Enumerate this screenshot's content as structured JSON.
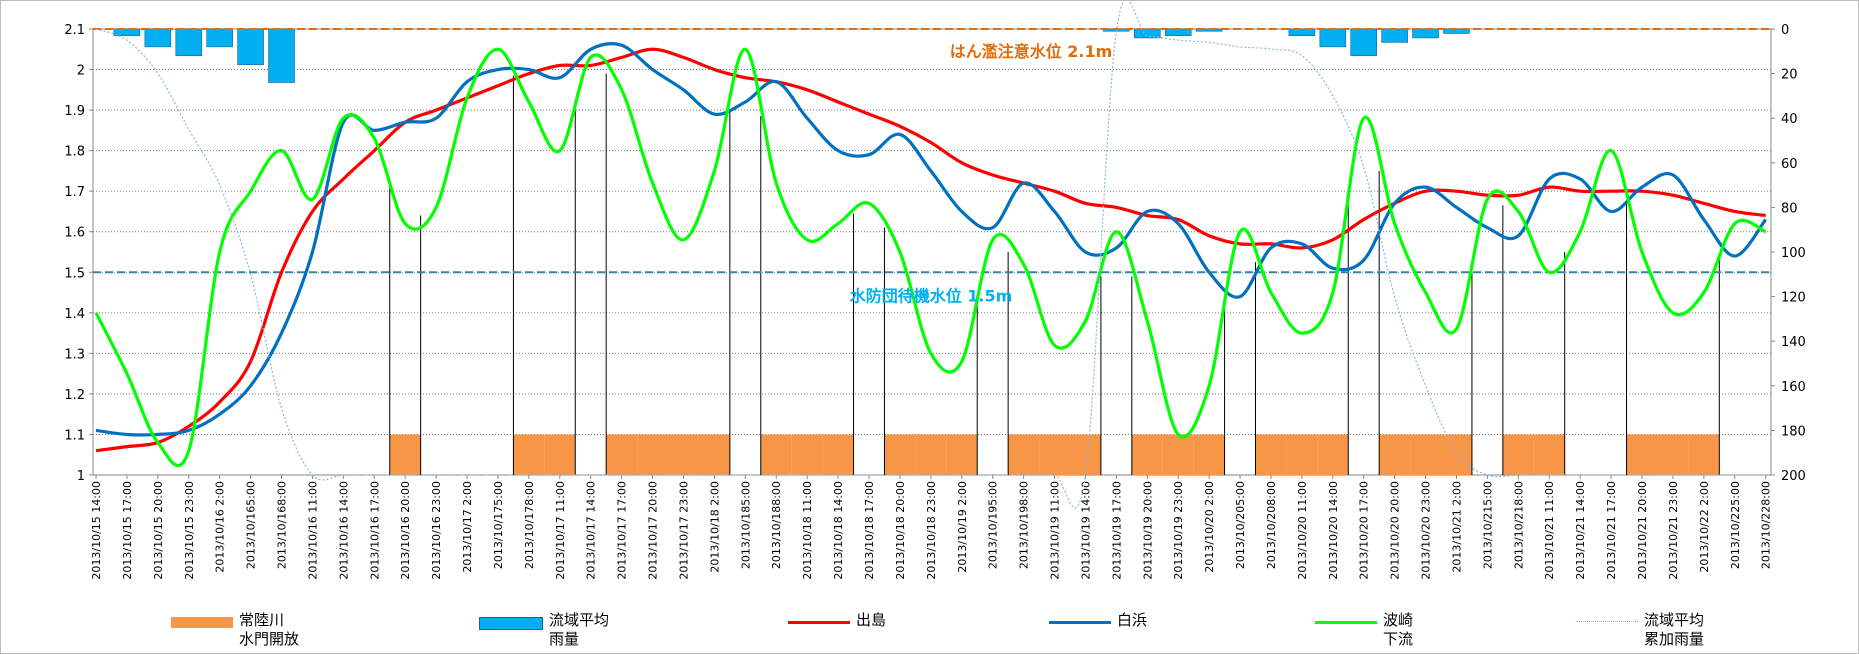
{
  "chart_data": {
    "type": "combo",
    "categories": [
      "2013/10/15 14:00",
      "2013/10/15 17:00",
      "2013/10/15 20:00",
      "2013/10/15 23:00",
      "2013/10/16 2:00",
      "2013/10/165:00",
      "2013/10/168:00",
      "2013/10/16 11:00",
      "2013/10/16 14:00",
      "2013/10/16 17:00",
      "2013/10/16 20:00",
      "2013/10/16 23:00",
      "2013/10/17 2:00",
      "2013/10/175:00",
      "2013/10/178:00",
      "2013/10/17 11:00",
      "2013/10/17 14:00",
      "2013/10/17 17:00",
      "2013/10/17 20:00",
      "2013/10/17 23:00",
      "2013/10/18 2:00",
      "2013/10/185:00",
      "2013/10/188:00",
      "2013/10/18 11:00",
      "2013/10/18 14:00",
      "2013/10/18 17:00",
      "2013/10/18 20:00",
      "2013/10/18 23:00",
      "2013/10/19 2:00",
      "2013/10/195:00",
      "2013/10/198:00",
      "2013/10/19 11:00",
      "2013/10/19 14:00",
      "2013/10/19 17:00",
      "2013/10/19 20:00",
      "2013/10/19 23:00",
      "2013/10/20 2:00",
      "2013/10/205:00",
      "2013/10/208:00",
      "2013/10/20 11:00",
      "2013/10/20 14:00",
      "2013/10/20 17:00",
      "2013/10/20 20:00",
      "2013/10/20 23:00",
      "2013/10/21 2:00",
      "2013/10/215:00",
      "2013/10/218:00",
      "2013/10/21 11:00",
      "2013/10/21 14:00",
      "2013/10/21 17:00",
      "2013/10/21 20:00",
      "2013/10/21 23:00",
      "2013/10/22 2:00",
      "2013/10/225:00",
      "2013/10/228:00"
    ],
    "series": [
      {
        "name": "常陸川\n水門開放",
        "type": "bar",
        "color": "#f79646",
        "values": [
          null,
          null,
          null,
          null,
          null,
          null,
          null,
          null,
          null,
          null,
          1.1,
          null,
          null,
          null,
          1.1,
          1.1,
          null,
          1.1,
          1.1,
          1.1,
          1.1,
          null,
          1.1,
          1.1,
          1.1,
          null,
          1.1,
          1.1,
          1.1,
          null,
          1.1,
          1.1,
          1.1,
          null,
          1.1,
          1.1,
          1.1,
          null,
          1.1,
          1.1,
          1.1,
          null,
          1.1,
          1.1,
          1.1,
          null,
          1.1,
          1.1,
          null,
          null,
          1.1,
          1.1,
          1.1,
          null,
          null
        ]
      },
      {
        "name": "流域平均\n雨量",
        "type": "bar",
        "axis": "y2",
        "color": "#00b0f0",
        "values": [
          0,
          3,
          8,
          12,
          8,
          16,
          24,
          0,
          0,
          0,
          0,
          0,
          0,
          0,
          0,
          0,
          0,
          0,
          0,
          0,
          0,
          0,
          0,
          0,
          0,
          0,
          0,
          0,
          0,
          0,
          0,
          0,
          0,
          1,
          4,
          3,
          1,
          0,
          0,
          3,
          8,
          12,
          6,
          4,
          2,
          0,
          0,
          0,
          0,
          0,
          0,
          0,
          0,
          0,
          0
        ]
      },
      {
        "name": "出島",
        "type": "line",
        "color": "#ff0000",
        "values": [
          1.06,
          1.07,
          1.08,
          1.12,
          1.18,
          1.28,
          1.5,
          1.65,
          1.73,
          1.8,
          1.87,
          1.9,
          1.93,
          1.96,
          1.99,
          2.01,
          2.01,
          2.03,
          2.05,
          2.03,
          2.0,
          1.98,
          1.97,
          1.95,
          1.92,
          1.89,
          1.86,
          1.82,
          1.77,
          1.74,
          1.72,
          1.7,
          1.67,
          1.66,
          1.64,
          1.63,
          1.59,
          1.57,
          1.57,
          1.56,
          1.58,
          1.63,
          1.67,
          1.7,
          1.7,
          1.69,
          1.69,
          1.71,
          1.7,
          1.7,
          1.7,
          1.69,
          1.67,
          1.65,
          1.64
        ]
      },
      {
        "name": "白浜",
        "type": "line",
        "color": "#0070c0",
        "values": [
          1.11,
          1.1,
          1.1,
          1.11,
          1.15,
          1.22,
          1.35,
          1.55,
          1.87,
          1.85,
          1.87,
          1.88,
          1.97,
          2.0,
          2.0,
          1.98,
          2.05,
          2.06,
          2.0,
          1.95,
          1.89,
          1.92,
          1.97,
          1.88,
          1.8,
          1.79,
          1.84,
          1.75,
          1.65,
          1.61,
          1.72,
          1.65,
          1.55,
          1.56,
          1.65,
          1.62,
          1.5,
          1.44,
          1.56,
          1.57,
          1.51,
          1.53,
          1.67,
          1.71,
          1.66,
          1.61,
          1.59,
          1.73,
          1.73,
          1.65,
          1.71,
          1.74,
          1.63,
          1.54,
          1.63
        ]
      },
      {
        "name": "波崎\n下流",
        "type": "line",
        "color": "#00ff00",
        "values": [
          1.4,
          1.25,
          1.08,
          1.06,
          1.55,
          1.7,
          1.8,
          1.68,
          1.88,
          1.83,
          1.62,
          1.66,
          1.93,
          2.05,
          1.92,
          1.8,
          2.03,
          1.95,
          1.72,
          1.58,
          1.75,
          2.05,
          1.72,
          1.58,
          1.62,
          1.67,
          1.55,
          1.3,
          1.28,
          1.58,
          1.52,
          1.32,
          1.38,
          1.6,
          1.38,
          1.1,
          1.22,
          1.6,
          1.45,
          1.35,
          1.45,
          1.88,
          1.62,
          1.45,
          1.36,
          1.68,
          1.65,
          1.5,
          1.6,
          1.8,
          1.55,
          1.4,
          1.45,
          1.62,
          1.6
        ]
      },
      {
        "name": "流域平均\n累加雨量",
        "type": "line",
        "axis": "y2",
        "color": "#8db4e2",
        "line_style": "dotted",
        "values": [
          0,
          5,
          20,
          45,
          70,
          110,
          170,
          200,
          200,
          200,
          200,
          200,
          200,
          200,
          200,
          200,
          200,
          200,
          200,
          200,
          200,
          200,
          200,
          200,
          200,
          200,
          200,
          200,
          200,
          200,
          200,
          200,
          200,
          1,
          3,
          5,
          6,
          8,
          9,
          12,
          30,
          62,
          120,
          160,
          190,
          200,
          200,
          200,
          200,
          200,
          200,
          200,
          200,
          200,
          200
        ]
      }
    ],
    "reference_lines": [
      {
        "value": 2.1,
        "label": "はん濫注意水位 2.1m",
        "color": "#e46c0a"
      },
      {
        "value": 1.5,
        "label": "水防団待機水位 1.5m",
        "color": "#31859c"
      }
    ],
    "ylim": [
      1,
      2.1
    ],
    "yticks": [
      1,
      1.1,
      1.2,
      1.3,
      1.4,
      1.5,
      1.6,
      1.7,
      1.8,
      1.9,
      2,
      2.1
    ],
    "y2lim": [
      0,
      200
    ],
    "y2ticks": [
      0,
      20,
      40,
      60,
      80,
      100,
      120,
      140,
      160,
      180,
      200
    ],
    "y2_inverted": true,
    "grid": true
  }
}
